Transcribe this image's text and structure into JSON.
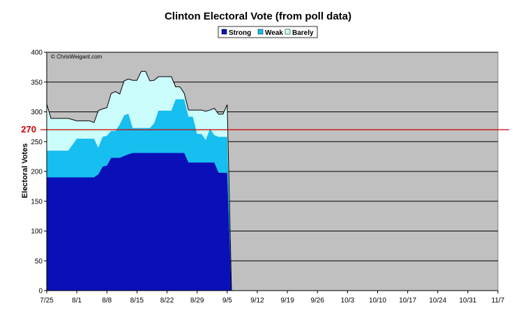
{
  "chart_data": {
    "type": "area",
    "title": "Clinton Electoral Vote (from poll data)",
    "ylabel": "Electoral Votes",
    "xlabel": "",
    "ylim": [
      0,
      400
    ],
    "yticks": [
      0,
      50,
      100,
      150,
      200,
      250,
      300,
      350,
      400
    ],
    "x_tick_labels": [
      "7/25",
      "8/1",
      "8/8",
      "8/15",
      "8/22",
      "8/29",
      "9/5",
      "9/12",
      "9/19",
      "9/26",
      "10/3",
      "10/10",
      "10/17",
      "10/24",
      "10/31",
      "11/7"
    ],
    "x_domain_days": [
      0,
      105
    ],
    "grid": "horizontal",
    "legend_position": "top-center",
    "annotation": "© ChrisWeigant.com",
    "reference_line": {
      "value": 270,
      "label": "270",
      "color": "#cc0000"
    },
    "colors": {
      "strong": "#0a10b8",
      "weak": "#16bff0",
      "barely": "#ccfdfd",
      "plot_bg": "#c0c0c0"
    },
    "x": [
      0,
      1,
      4,
      5,
      7,
      8,
      9,
      10,
      11,
      12,
      13,
      14,
      15,
      16,
      17,
      18,
      19,
      20,
      21,
      22,
      23,
      24,
      25,
      26,
      27,
      28,
      29,
      30,
      31,
      32,
      33,
      34,
      35,
      36,
      37,
      38,
      39,
      40,
      41,
      42,
      43
    ],
    "series": [
      {
        "name": "Strong",
        "values": [
          190,
          190,
          190,
          190,
          190,
          190,
          190,
          190,
          190,
          195,
          208,
          210,
          223,
          223,
          223,
          226,
          229,
          231,
          231,
          231,
          231,
          231,
          231,
          231,
          231,
          231,
          231,
          231,
          231,
          231,
          215,
          215,
          215,
          215,
          215,
          215,
          215,
          198,
          198,
          198,
          0
        ]
      },
      {
        "name": "Weak",
        "values": [
          45,
          45,
          45,
          45,
          65,
          65,
          65,
          65,
          65,
          45,
          50,
          50,
          45,
          45,
          56,
          68,
          68,
          42,
          42,
          42,
          42,
          42,
          50,
          71,
          71,
          71,
          71,
          90,
          90,
          90,
          77,
          77,
          48,
          48,
          38,
          57,
          46,
          60,
          60,
          60,
          0
        ]
      },
      {
        "name": "Barely",
        "values": [
          78,
          54,
          54,
          54,
          30,
          30,
          30,
          30,
          27,
          62,
          47,
          47,
          63,
          66,
          51,
          58,
          58,
          80,
          80,
          95,
          95,
          79,
          72,
          57,
          57,
          57,
          57,
          21,
          21,
          10,
          11,
          11,
          40,
          40,
          48,
          31,
          45,
          38,
          38,
          54,
          0
        ]
      }
    ]
  }
}
